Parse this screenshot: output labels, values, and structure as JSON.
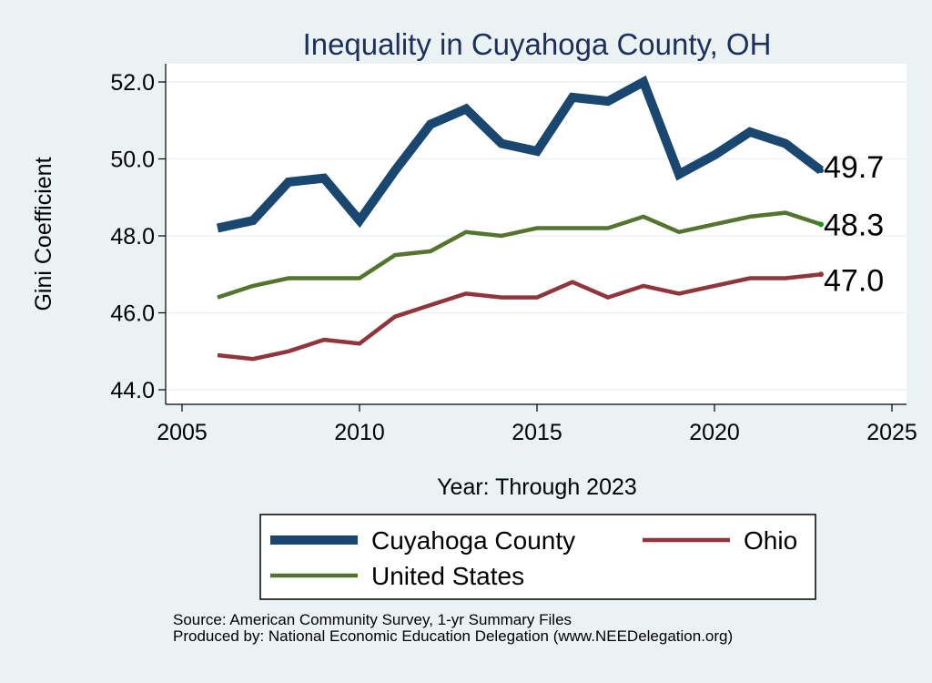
{
  "chart_data": {
    "type": "line",
    "title": "Inequality in Cuyahoga County, OH",
    "xlabel": "Year: Through 2023",
    "ylabel": "Gini Coefficient",
    "xlim": [
      2005,
      2025
    ],
    "ylim": [
      44.0,
      52.0
    ],
    "x_ticks": [
      2005,
      2010,
      2015,
      2020,
      2025
    ],
    "x_tick_labels": [
      "2005",
      "2010",
      "2015",
      "2020",
      "2025"
    ],
    "y_ticks": [
      44.0,
      46.0,
      48.0,
      50.0,
      52.0
    ],
    "y_tick_labels": [
      "44.0",
      "46.0",
      "48.0",
      "50.0",
      "52.0"
    ],
    "grid": true,
    "legend_position": "bottom",
    "series": [
      {
        "name": "Cuyahoga County",
        "color": "#1a476f",
        "line_weight": "thick",
        "end_label": "49.7",
        "x": [
          2006,
          2007,
          2008,
          2009,
          2010,
          2011,
          2012,
          2013,
          2014,
          2015,
          2016,
          2017,
          2018,
          2019,
          2020,
          2021,
          2022,
          2023
        ],
        "values": [
          48.2,
          48.4,
          49.4,
          49.5,
          48.4,
          49.7,
          50.9,
          51.3,
          50.4,
          50.2,
          51.6,
          51.5,
          52.0,
          49.6,
          50.1,
          50.7,
          50.4,
          49.7
        ]
      },
      {
        "name": "Ohio",
        "color": "#90353b",
        "line_weight": "medium",
        "end_label": "47.0",
        "x": [
          2006,
          2007,
          2008,
          2009,
          2010,
          2011,
          2012,
          2013,
          2014,
          2015,
          2016,
          2017,
          2018,
          2019,
          2020,
          2021,
          2022,
          2023
        ],
        "values": [
          44.9,
          44.8,
          45.0,
          45.3,
          45.2,
          45.9,
          46.2,
          46.5,
          46.4,
          46.4,
          46.8,
          46.4,
          46.7,
          46.5,
          46.7,
          46.9,
          46.9,
          47.0
        ]
      },
      {
        "name": "United States",
        "color": "#55752f",
        "line_weight": "medium",
        "end_label": "48.3",
        "x": [
          2006,
          2007,
          2008,
          2009,
          2010,
          2011,
          2012,
          2013,
          2014,
          2015,
          2016,
          2017,
          2018,
          2019,
          2020,
          2021,
          2022,
          2023
        ],
        "values": [
          46.4,
          46.7,
          46.9,
          46.9,
          46.9,
          47.5,
          47.6,
          48.1,
          48.0,
          48.2,
          48.2,
          48.2,
          48.5,
          48.1,
          48.3,
          48.5,
          48.6,
          48.3
        ]
      }
    ]
  },
  "notes": {
    "source": "Source: American Community Survey, 1-yr Summary Files",
    "producer": "Produced by: National Economic Education Delegation (www.NEEDelegation.org)"
  }
}
